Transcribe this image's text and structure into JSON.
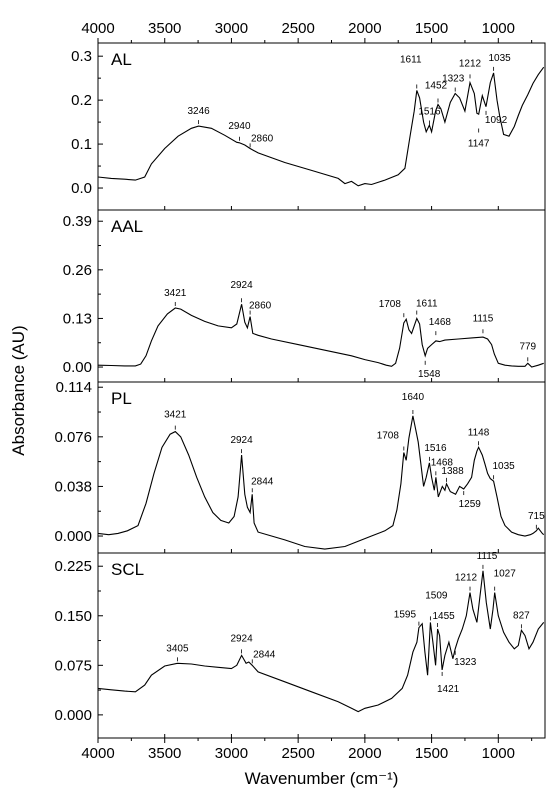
{
  "chart_data": {
    "type": "line",
    "xlabel": "Wavenumber (cm⁻¹)",
    "ylabel": "Absorbance (AU)",
    "xlim": [
      4000,
      650
    ],
    "x_reversed": true,
    "xticks": [
      "4000",
      "3500",
      "3000",
      "2500",
      "2000",
      "1500",
      "1000"
    ],
    "top_xticks": [
      "4000",
      "3500",
      "3000",
      "2500",
      "2000",
      "1500",
      "1000"
    ],
    "panels": [
      {
        "name": "AL",
        "ylim": [
          -0.05,
          0.33
        ],
        "yticks": [
          "0.0",
          "0.1",
          "0.2",
          "0.3"
        ],
        "ytick_values": [
          0.0,
          0.1,
          0.2,
          0.3
        ],
        "peaks": [
          {
            "label": "3246",
            "x": 3246,
            "y": 0.141
          },
          {
            "label": "2940",
            "x": 2940,
            "y": 0.103
          },
          {
            "label": "2860",
            "x": 2860,
            "y": 0.088
          },
          {
            "label": "1611",
            "x": 1611,
            "y": 0.222
          },
          {
            "label": "1516",
            "x": 1516,
            "y": 0.14
          },
          {
            "label": "1452",
            "x": 1452,
            "y": 0.19
          },
          {
            "label": "1323",
            "x": 1323,
            "y": 0.215
          },
          {
            "label": "1212",
            "x": 1212,
            "y": 0.245
          },
          {
            "label": "1147",
            "x": 1147,
            "y": 0.14
          },
          {
            "label": "1092",
            "x": 1092,
            "y": 0.18
          },
          {
            "label": "1035",
            "x": 1035,
            "y": 0.262
          }
        ],
        "series": [
          {
            "x": [
              4000,
              3900,
              3800,
              3720,
              3650,
              3600,
              3500,
              3400,
              3300,
              3246,
              3150,
              3050,
              2960,
              2940,
              2900,
              2860,
              2800,
              2600,
              2400,
              2200,
              2150,
              2100,
              2050,
              2000,
              1950,
              1850,
              1750,
              1700,
              1660,
              1630,
              1611,
              1590,
              1560,
              1540,
              1516,
              1500,
              1470,
              1452,
              1430,
              1400,
              1360,
              1323,
              1290,
              1250,
              1212,
              1180,
              1160,
              1147,
              1120,
              1092,
              1060,
              1035,
              1010,
              990,
              960,
              920,
              880,
              850,
              820,
              780,
              740,
              700,
              660
            ],
            "y": [
              0.025,
              0.022,
              0.02,
              0.018,
              0.025,
              0.055,
              0.09,
              0.118,
              0.136,
              0.141,
              0.136,
              0.12,
              0.104,
              0.103,
              0.098,
              0.09,
              0.08,
              0.058,
              0.04,
              0.022,
              0.01,
              0.015,
              0.005,
              0.01,
              0.008,
              0.018,
              0.03,
              0.045,
              0.12,
              0.175,
              0.222,
              0.205,
              0.15,
              0.128,
              0.143,
              0.128,
              0.175,
              0.19,
              0.18,
              0.15,
              0.195,
              0.215,
              0.205,
              0.175,
              0.24,
              0.215,
              0.17,
              0.168,
              0.21,
              0.185,
              0.24,
              0.262,
              0.2,
              0.165,
              0.122,
              0.118,
              0.14,
              0.165,
              0.188,
              0.212,
              0.238,
              0.258,
              0.275
            ]
          }
        ]
      },
      {
        "name": "AAL",
        "ylim": [
          -0.04,
          0.42
        ],
        "yticks": [
          "0.00",
          "0.13",
          "0.26",
          "0.39"
        ],
        "ytick_values": [
          0.0,
          0.13,
          0.26,
          0.39
        ],
        "peaks": [
          {
            "label": "3421",
            "x": 3421,
            "y": 0.158
          },
          {
            "label": "2924",
            "x": 2924,
            "y": 0.168
          },
          {
            "label": "2860",
            "x": 2860,
            "y": 0.135
          },
          {
            "label": "1708",
            "x": 1708,
            "y": 0.128
          },
          {
            "label": "1611",
            "x": 1611,
            "y": 0.135
          },
          {
            "label": "1548",
            "x": 1548,
            "y": 0.022
          },
          {
            "label": "1468",
            "x": 1468,
            "y": 0.08
          },
          {
            "label": "1115",
            "x": 1115,
            "y": 0.085
          },
          {
            "label": "779",
            "x": 779,
            "y": 0.01
          }
        ],
        "series": [
          {
            "x": [
              4000,
              3900,
              3800,
              3720,
              3680,
              3640,
              3600,
              3550,
              3480,
              3421,
              3380,
              3300,
              3200,
              3100,
              3000,
              2960,
              2924,
              2900,
              2880,
              2860,
              2840,
              2800,
              2700,
              2500,
              2300,
              2100,
              2000,
              1900,
              1840,
              1800,
              1770,
              1740,
              1708,
              1690,
              1670,
              1650,
              1611,
              1590,
              1570,
              1548,
              1530,
              1500,
              1468,
              1440,
              1400,
              1300,
              1200,
              1115,
              1080,
              1050,
              1030,
              1000,
              950,
              900,
              850,
              800,
              779,
              750,
              700,
              660
            ],
            "y": [
              0.005,
              0.004,
              0.003,
              0.003,
              0.008,
              0.03,
              0.07,
              0.11,
              0.142,
              0.158,
              0.155,
              0.138,
              0.122,
              0.11,
              0.105,
              0.115,
              0.168,
              0.12,
              0.105,
              0.135,
              0.09,
              0.085,
              0.075,
              0.06,
              0.045,
              0.03,
              0.02,
              0.012,
              0.005,
              0.002,
              0.01,
              0.05,
              0.118,
              0.128,
              0.1,
              0.09,
              0.13,
              0.115,
              0.06,
              0.03,
              0.05,
              0.06,
              0.07,
              0.068,
              0.072,
              0.075,
              0.078,
              0.08,
              0.075,
              0.06,
              0.035,
              0.01,
              0.005,
              0.003,
              0.002,
              0.002,
              0.01,
              0.0,
              0.005,
              0.01
            ]
          }
        ]
      },
      {
        "name": "PL",
        "ylim": [
          -0.013,
          0.118
        ],
        "yticks": [
          "0.000",
          "0.038",
          "0.076",
          "0.114"
        ],
        "ytick_values": [
          0.0,
          0.038,
          0.076,
          0.114
        ],
        "peaks": [
          {
            "label": "3421",
            "x": 3421,
            "y": 0.08
          },
          {
            "label": "2924",
            "x": 2924,
            "y": 0.062
          },
          {
            "label": "2844",
            "x": 2844,
            "y": 0.032
          },
          {
            "label": "1708",
            "x": 1708,
            "y": 0.064
          },
          {
            "label": "1640",
            "x": 1640,
            "y": 0.092
          },
          {
            "label": "1516",
            "x": 1516,
            "y": 0.056
          },
          {
            "label": "1468",
            "x": 1468,
            "y": 0.045
          },
          {
            "label": "1388",
            "x": 1388,
            "y": 0.04
          },
          {
            "label": "1259",
            "x": 1259,
            "y": 0.036
          },
          {
            "label": "1148",
            "x": 1148,
            "y": 0.068
          },
          {
            "label": "1035",
            "x": 1035,
            "y": 0.042
          },
          {
            "label": "715",
            "x": 715,
            "y": 0.004
          }
        ],
        "series": [
          {
            "x": [
              4000,
              3920,
              3850,
              3780,
              3700,
              3640,
              3580,
              3520,
              3460,
              3421,
              3380,
              3320,
              3260,
              3200,
              3140,
              3080,
              3020,
              2980,
              2950,
              2924,
              2900,
              2880,
              2860,
              2844,
              2830,
              2800,
              2700,
              2600,
              2450,
              2300,
              2150,
              2050,
              1950,
              1850,
              1790,
              1760,
              1730,
              1708,
              1690,
              1670,
              1640,
              1620,
              1600,
              1580,
              1560,
              1540,
              1516,
              1500,
              1480,
              1468,
              1450,
              1420,
              1400,
              1388,
              1360,
              1320,
              1290,
              1259,
              1230,
              1200,
              1180,
              1160,
              1148,
              1120,
              1100,
              1080,
              1060,
              1035,
              1010,
              980,
              950,
              900,
              850,
              800,
              760,
              740,
              715,
              700,
              670,
              660
            ],
            "y": [
              0.002,
              0.001,
              0.002,
              0.004,
              0.008,
              0.025,
              0.048,
              0.068,
              0.078,
              0.08,
              0.076,
              0.062,
              0.045,
              0.03,
              0.018,
              0.012,
              0.01,
              0.015,
              0.03,
              0.062,
              0.032,
              0.022,
              0.018,
              0.032,
              0.01,
              0.003,
              0.0,
              -0.003,
              -0.008,
              -0.01,
              -0.008,
              -0.004,
              0.0,
              0.004,
              0.008,
              0.02,
              0.04,
              0.064,
              0.058,
              0.075,
              0.092,
              0.082,
              0.072,
              0.055,
              0.038,
              0.045,
              0.056,
              0.045,
              0.035,
              0.045,
              0.03,
              0.038,
              0.035,
              0.04,
              0.034,
              0.032,
              0.038,
              0.036,
              0.04,
              0.045,
              0.058,
              0.065,
              0.068,
              0.062,
              0.055,
              0.048,
              0.044,
              0.042,
              0.03,
              0.015,
              0.008,
              0.003,
              0.001,
              0.0,
              0.001,
              0.002,
              0.004,
              0.006,
              0.002,
              0.001
            ]
          }
        ]
      },
      {
        "name": "SCL",
        "ylim": [
          -0.035,
          0.245
        ],
        "yticks": [
          "0.000",
          "0.075",
          "0.150",
          "0.225"
        ],
        "ytick_values": [
          0.0,
          0.075,
          0.15,
          0.225
        ],
        "peaks": [
          {
            "label": "3405",
            "x": 3405,
            "y": 0.078
          },
          {
            "label": "2924",
            "x": 2924,
            "y": 0.09
          },
          {
            "label": "2844",
            "x": 2844,
            "y": 0.075
          },
          {
            "label": "1595",
            "x": 1595,
            "y": 0.132
          },
          {
            "label": "1509",
            "x": 1509,
            "y": 0.14
          },
          {
            "label": "1455",
            "x": 1455,
            "y": 0.13
          },
          {
            "label": "1421",
            "x": 1421,
            "y": 0.068
          },
          {
            "label": "1323",
            "x": 1323,
            "y": 0.1
          },
          {
            "label": "1212",
            "x": 1212,
            "y": 0.185
          },
          {
            "label": "1115",
            "x": 1115,
            "y": 0.218
          },
          {
            "label": "1027",
            "x": 1027,
            "y": 0.185
          },
          {
            "label": "827",
            "x": 827,
            "y": 0.128
          }
        ],
        "series": [
          {
            "x": [
              4000,
              3900,
              3800,
              3720,
              3650,
              3600,
              3500,
              3405,
              3300,
              3200,
              3100,
              3000,
              2960,
              2924,
              2890,
              2870,
              2844,
              2800,
              2600,
              2400,
              2200,
              2100,
              2050,
              2000,
              1900,
              1800,
              1720,
              1680,
              1640,
              1610,
              1595,
              1570,
              1550,
              1530,
              1509,
              1490,
              1470,
              1455,
              1440,
              1421,
              1400,
              1370,
              1340,
              1323,
              1300,
              1270,
              1240,
              1212,
              1190,
              1160,
              1140,
              1115,
              1090,
              1060,
              1040,
              1027,
              1000,
              960,
              920,
              880,
              850,
              827,
              800,
              770,
              740,
              700,
              660
            ],
            "y": [
              0.04,
              0.038,
              0.036,
              0.035,
              0.045,
              0.06,
              0.074,
              0.078,
              0.077,
              0.074,
              0.072,
              0.07,
              0.075,
              0.09,
              0.078,
              0.08,
              0.075,
              0.065,
              0.05,
              0.035,
              0.02,
              0.01,
              0.005,
              0.01,
              0.015,
              0.025,
              0.04,
              0.06,
              0.095,
              0.11,
              0.132,
              0.138,
              0.095,
              0.06,
              0.14,
              0.11,
              0.075,
              0.13,
              0.12,
              0.068,
              0.09,
              0.11,
              0.085,
              0.1,
              0.115,
              0.13,
              0.15,
              0.185,
              0.16,
              0.14,
              0.175,
              0.218,
              0.17,
              0.13,
              0.16,
              0.185,
              0.15,
              0.125,
              0.11,
              0.1,
              0.105,
              0.128,
              0.12,
              0.1,
              0.11,
              0.13,
              0.14
            ]
          }
        ]
      }
    ]
  }
}
